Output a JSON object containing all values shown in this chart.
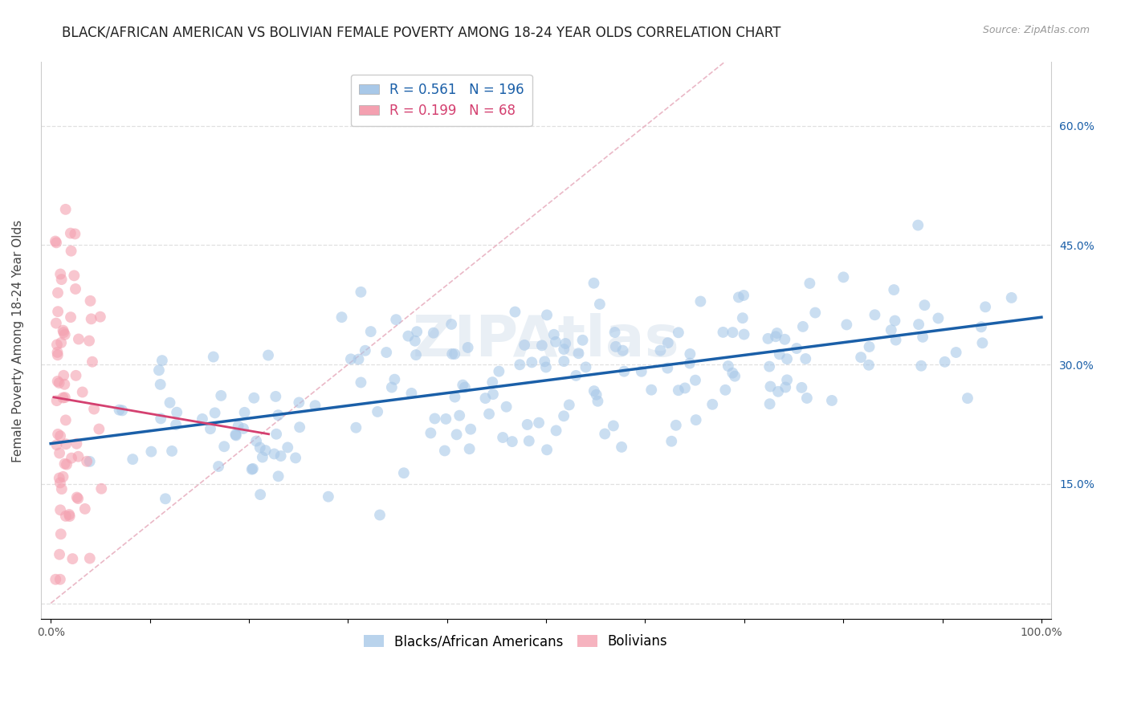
{
  "title": "BLACK/AFRICAN AMERICAN VS BOLIVIAN FEMALE POVERTY AMONG 18-24 YEAR OLDS CORRELATION CHART",
  "source": "Source: ZipAtlas.com",
  "ylabel": "Female Poverty Among 18-24 Year Olds",
  "xlim": [
    -0.01,
    1.01
  ],
  "ylim": [
    -0.02,
    0.68
  ],
  "xticks": [
    0.0,
    0.1,
    0.2,
    0.3,
    0.4,
    0.5,
    0.6,
    0.7,
    0.8,
    0.9,
    1.0
  ],
  "xticklabels": [
    "0.0%",
    "",
    "",
    "",
    "",
    "",
    "",
    "",
    "",
    "",
    "100.0%"
  ],
  "yticks": [
    0.0,
    0.15,
    0.3,
    0.45,
    0.6
  ],
  "yticklabels": [
    "",
    "15.0%",
    "30.0%",
    "45.0%",
    "60.0%"
  ],
  "blue_R": 0.561,
  "blue_N": 196,
  "pink_R": 0.199,
  "pink_N": 68,
  "blue_color": "#a8c8e8",
  "pink_color": "#f4a0b0",
  "blue_line_color": "#1a5fa8",
  "pink_line_color": "#d44070",
  "diagonal_color": "#e8b0c0",
  "grid_color": "#e0e0e0",
  "background_color": "#ffffff",
  "watermark": "ZIPAtlas",
  "legend_label_blue": "Blacks/African Americans",
  "legend_label_pink": "Bolivians",
  "title_fontsize": 12,
  "label_fontsize": 11,
  "tick_fontsize": 10,
  "legend_fontsize": 12
}
